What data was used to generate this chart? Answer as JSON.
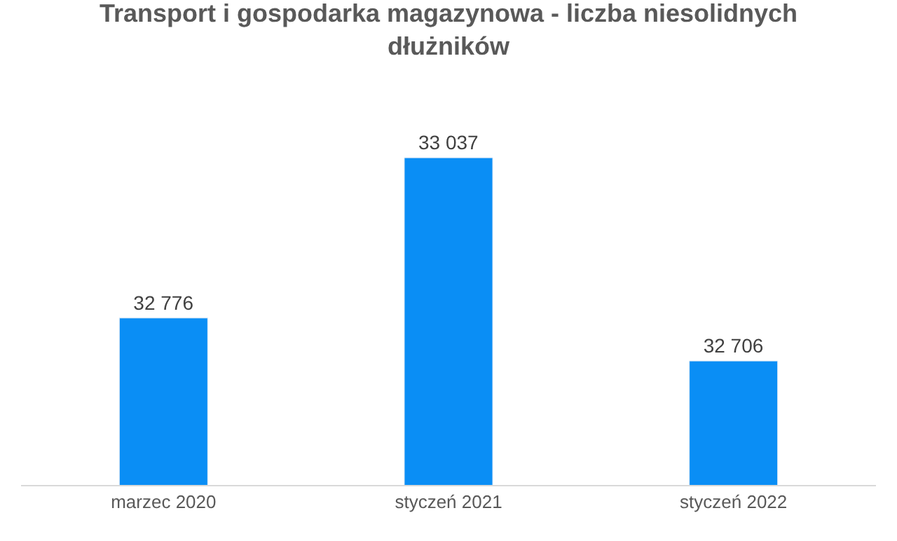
{
  "chart_data": {
    "type": "bar",
    "title": "Transport i gospodarka magazynowa - liczba niesolidnych dłużników",
    "categories": [
      "marzec 2020",
      "styczeń 2021",
      "styczeń 2022"
    ],
    "series": [
      {
        "color": "#0a8ef5",
        "values": [
          32776,
          33037,
          32706
        ],
        "value_labels": [
          "32 776",
          "33 037",
          "32 706"
        ]
      }
    ],
    "tick_labels": "x",
    "legend": false
  }
}
